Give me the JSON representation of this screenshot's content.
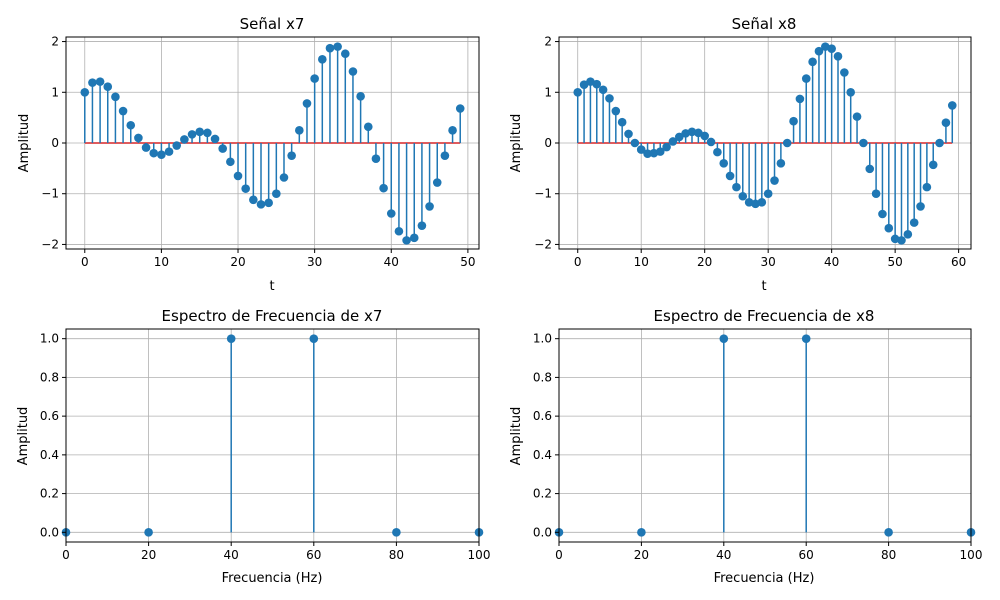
{
  "colors": {
    "stem": "#1f77b4",
    "baseline": "#d62728",
    "grid": "#b0b0b0",
    "axis": "#000000"
  },
  "chart_data": [
    {
      "type": "stem",
      "title": "Señal x7",
      "xlabel": "t",
      "ylabel": "Amplitud",
      "xlim": [
        -2.45,
        51.45
      ],
      "ylim": [
        -2.09,
        2.09
      ],
      "xticks": [
        0,
        10,
        20,
        30,
        40,
        50
      ],
      "xtick_labels": [
        "0",
        "10",
        "20",
        "30",
        "40",
        "50"
      ],
      "yticks": [
        -2,
        -1,
        0,
        1,
        2
      ],
      "ytick_labels": [
        "−2",
        "−1",
        "0",
        "1",
        "2"
      ],
      "grid": true,
      "baseline": {
        "from": 0,
        "to": 49,
        "value": 0
      },
      "x": [
        0,
        1,
        2,
        3,
        4,
        5,
        6,
        7,
        8,
        9,
        10,
        11,
        12,
        13,
        14,
        15,
        16,
        17,
        18,
        19,
        20,
        21,
        22,
        23,
        24,
        25,
        26,
        27,
        28,
        29,
        30,
        31,
        32,
        33,
        34,
        35,
        36,
        37,
        38,
        39,
        40,
        41,
        42,
        43,
        44,
        45,
        46,
        47,
        48,
        49
      ],
      "y": [
        1.0,
        1.19,
        1.21,
        1.11,
        0.91,
        0.63,
        0.35,
        0.1,
        -0.09,
        -0.2,
        -0.23,
        -0.17,
        -0.05,
        0.07,
        0.17,
        0.22,
        0.2,
        0.08,
        -0.11,
        -0.37,
        -0.65,
        -0.9,
        -1.12,
        -1.21,
        -1.18,
        -1.0,
        -0.68,
        -0.25,
        0.25,
        0.78,
        1.27,
        1.65,
        1.87,
        1.9,
        1.76,
        1.41,
        0.92,
        0.32,
        -0.31,
        -0.89,
        -1.39,
        -1.74,
        -1.92,
        -1.87,
        -1.63,
        -1.25,
        -0.78,
        -0.25,
        0.25,
        0.68
      ]
    },
    {
      "type": "stem",
      "title": "Señal x8",
      "xlabel": "t",
      "ylabel": "Amplitud",
      "xlim": [
        -2.95,
        61.95
      ],
      "ylim": [
        -2.09,
        2.09
      ],
      "xticks": [
        0,
        10,
        20,
        30,
        40,
        50,
        60
      ],
      "xtick_labels": [
        "0",
        "10",
        "20",
        "30",
        "40",
        "50",
        "60"
      ],
      "yticks": [
        -2,
        -1,
        0,
        1,
        2
      ],
      "ytick_labels": [
        "−2",
        "−1",
        "0",
        "1",
        "2"
      ],
      "grid": true,
      "baseline": {
        "from": 0,
        "to": 59,
        "value": 0
      },
      "x": [
        0,
        1,
        2,
        3,
        4,
        5,
        6,
        7,
        8,
        9,
        10,
        11,
        12,
        13,
        14,
        15,
        16,
        17,
        18,
        19,
        20,
        21,
        22,
        23,
        24,
        25,
        26,
        27,
        28,
        29,
        30,
        31,
        32,
        33,
        34,
        35,
        36,
        37,
        38,
        39,
        40,
        41,
        42,
        43,
        44,
        45,
        46,
        47,
        48,
        49,
        50,
        51,
        52,
        53,
        54,
        55,
        56,
        57,
        58,
        59
      ],
      "y": [
        1.0,
        1.15,
        1.21,
        1.16,
        1.05,
        0.88,
        0.63,
        0.41,
        0.18,
        0.0,
        -0.13,
        -0.21,
        -0.2,
        -0.17,
        -0.08,
        0.03,
        0.12,
        0.19,
        0.22,
        0.2,
        0.14,
        0.02,
        -0.18,
        -0.4,
        -0.65,
        -0.87,
        -1.05,
        -1.17,
        -1.2,
        -1.17,
        -1.0,
        -0.74,
        -0.4,
        0.0,
        0.43,
        0.87,
        1.27,
        1.6,
        1.81,
        1.9,
        1.86,
        1.71,
        1.39,
        1.0,
        0.52,
        0.0,
        -0.51,
        -1.0,
        -1.4,
        -1.68,
        -1.89,
        -1.92,
        -1.8,
        -1.57,
        -1.25,
        -0.87,
        -0.43,
        0.0,
        0.4,
        0.74
      ]
    },
    {
      "type": "stem",
      "title": "Espectro de Frecuencia de x7",
      "xlabel": "Frecuencia (Hz)",
      "ylabel": "Amplitud",
      "xlim": [
        0,
        100
      ],
      "ylim": [
        -0.05,
        1.05
      ],
      "xticks": [
        0,
        20,
        40,
        60,
        80,
        100
      ],
      "xtick_labels": [
        "0",
        "20",
        "40",
        "60",
        "80",
        "100"
      ],
      "yticks": [
        0,
        0.2,
        0.4,
        0.6,
        0.8,
        1.0
      ],
      "ytick_labels": [
        "0.0",
        "0.2",
        "0.4",
        "0.6",
        "0.8",
        "1.0"
      ],
      "grid": true,
      "x": [
        0,
        20,
        40,
        60,
        80,
        100
      ],
      "y": [
        0,
        0,
        1,
        1,
        0,
        0
      ]
    },
    {
      "type": "stem",
      "title": "Espectro de Frecuencia de x8",
      "xlabel": "Frecuencia (Hz)",
      "ylabel": "Amplitud",
      "xlim": [
        0,
        100
      ],
      "ylim": [
        -0.05,
        1.05
      ],
      "xticks": [
        0,
        20,
        40,
        60,
        80,
        100
      ],
      "xtick_labels": [
        "0",
        "20",
        "40",
        "60",
        "80",
        "100"
      ],
      "yticks": [
        0,
        0.2,
        0.4,
        0.6,
        0.8,
        1.0
      ],
      "ytick_labels": [
        "0.0",
        "0.2",
        "0.4",
        "0.6",
        "0.8",
        "1.0"
      ],
      "grid": true,
      "x": [
        0,
        20,
        40,
        60,
        80,
        100
      ],
      "y": [
        0,
        0,
        1,
        1,
        0,
        0
      ]
    }
  ]
}
